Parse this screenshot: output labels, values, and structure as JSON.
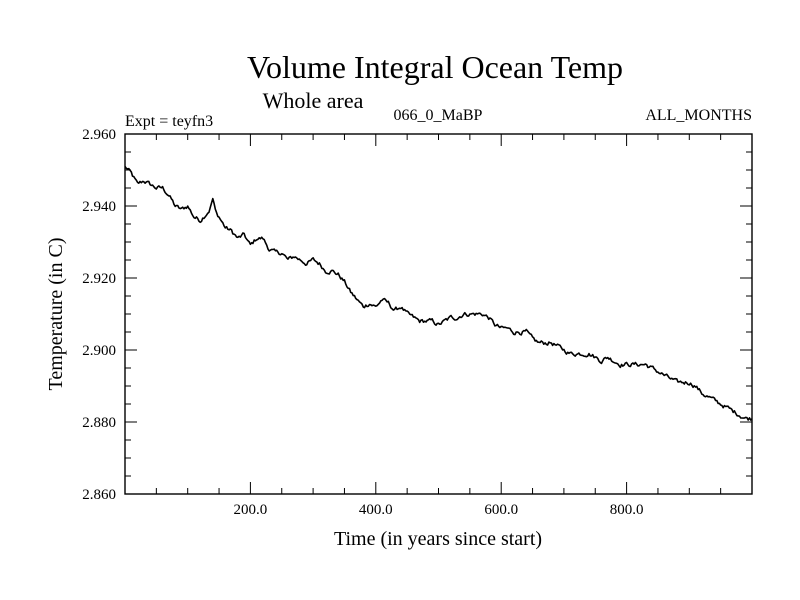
{
  "chart_data": {
    "type": "line",
    "title": "Volume Integral Ocean Temp",
    "subtitle": "Whole area",
    "left_label": "Expt = teyfn3",
    "center_label": "066_0_MaBP",
    "right_label": "ALL_MONTHS",
    "xlabel": "Time (in years since start)",
    "ylabel": "Temperature (in C)",
    "xlim": [
      0,
      1000
    ],
    "ylim": [
      2.86,
      2.96
    ],
    "x_ticks": [
      {
        "value": 200,
        "label": "200.0"
      },
      {
        "value": 400,
        "label": "400.0"
      },
      {
        "value": 600,
        "label": "600.0"
      },
      {
        "value": 800,
        "label": "800.0"
      }
    ],
    "y_ticks": [
      {
        "value": 2.86,
        "label": "2.860"
      },
      {
        "value": 2.88,
        "label": "2.880"
      },
      {
        "value": 2.9,
        "label": "2.900"
      },
      {
        "value": 2.92,
        "label": "2.920"
      },
      {
        "value": 2.94,
        "label": "2.940"
      },
      {
        "value": 2.96,
        "label": "2.960"
      }
    ],
    "series": [
      {
        "name": "temperature",
        "x": [
          0,
          10,
          20,
          30,
          40,
          50,
          60,
          70,
          80,
          90,
          100,
          110,
          120,
          130,
          135,
          140,
          145,
          150,
          160,
          170,
          180,
          190,
          200,
          210,
          220,
          230,
          240,
          250,
          260,
          270,
          280,
          290,
          300,
          310,
          320,
          330,
          340,
          350,
          360,
          370,
          380,
          390,
          400,
          410,
          420,
          430,
          440,
          450,
          460,
          470,
          480,
          490,
          500,
          510,
          520,
          530,
          540,
          550,
          560,
          570,
          580,
          590,
          600,
          610,
          620,
          630,
          640,
          650,
          660,
          670,
          680,
          690,
          700,
          710,
          720,
          730,
          740,
          750,
          760,
          770,
          780,
          790,
          800,
          810,
          820,
          830,
          840,
          850,
          860,
          870,
          880,
          890,
          900,
          910,
          920,
          930,
          940,
          950,
          960,
          970,
          980,
          990,
          1000
        ],
        "values": [
          2.951,
          2.949,
          2.946,
          2.947,
          2.946,
          2.945,
          2.945,
          2.943,
          2.94,
          2.939,
          2.94,
          2.937,
          2.936,
          2.938,
          2.939,
          2.942,
          2.938,
          2.937,
          2.934,
          2.933,
          2.931,
          2.932,
          2.929,
          2.931,
          2.931,
          2.928,
          2.927,
          2.927,
          2.925,
          2.926,
          2.925,
          2.924,
          2.925,
          2.924,
          2.922,
          2.922,
          2.921,
          2.919,
          2.916,
          2.914,
          2.912,
          2.913,
          2.912,
          2.914,
          2.913,
          2.911,
          2.912,
          2.91,
          2.909,
          2.908,
          2.908,
          2.908,
          2.907,
          2.908,
          2.909,
          2.909,
          2.91,
          2.91,
          2.91,
          2.91,
          2.909,
          2.907,
          2.906,
          2.906,
          2.905,
          2.905,
          2.905,
          2.903,
          2.902,
          2.902,
          2.902,
          2.901,
          2.9,
          2.899,
          2.899,
          2.899,
          2.899,
          2.898,
          2.897,
          2.898,
          2.897,
          2.896,
          2.896,
          2.896,
          2.896,
          2.896,
          2.895,
          2.894,
          2.893,
          2.892,
          2.891,
          2.891,
          2.891,
          2.89,
          2.888,
          2.887,
          2.886,
          2.885,
          2.884,
          2.883,
          2.882,
          2.881,
          2.881
        ]
      }
    ]
  }
}
